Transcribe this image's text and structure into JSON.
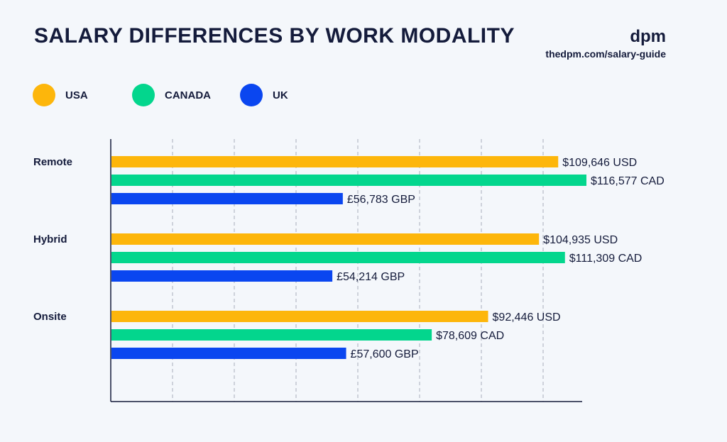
{
  "header": {
    "title": "SALARY DIFFERENCES BY WORK MODALITY",
    "brand": "dpm",
    "source": "thedpm.com/salary-guide"
  },
  "colors": {
    "usa": "#fdb60b",
    "canada": "#03d68d",
    "uk": "#0a46f0"
  },
  "legend": [
    {
      "label": "USA",
      "color": "#fdb60b"
    },
    {
      "label": "CANADA",
      "color": "#03d68d"
    },
    {
      "label": "UK",
      "color": "#0a46f0"
    }
  ],
  "chart_data": {
    "type": "bar",
    "orientation": "horizontal",
    "categories": [
      "Remote",
      "Hybrid",
      "Onsite"
    ],
    "series": [
      {
        "name": "USA",
        "color": "#fdb60b",
        "values": [
          109646,
          104935,
          92446
        ],
        "labels": [
          "$109,646 USD",
          "$104,935 USD",
          "$92,446 USD"
        ]
      },
      {
        "name": "CANADA",
        "color": "#03d68d",
        "values": [
          116577,
          111309,
          78609
        ],
        "labels": [
          "$116,577 CAD",
          "$111,309 CAD",
          "$78,609 CAD"
        ]
      },
      {
        "name": "UK",
        "color": "#0a46f0",
        "values": [
          56783,
          54214,
          57600
        ],
        "labels": [
          "£56,783 GBP",
          "£54,214 GBP",
          "£57,600 GBP"
        ]
      }
    ],
    "grid": true,
    "legend_position": "top-left"
  }
}
